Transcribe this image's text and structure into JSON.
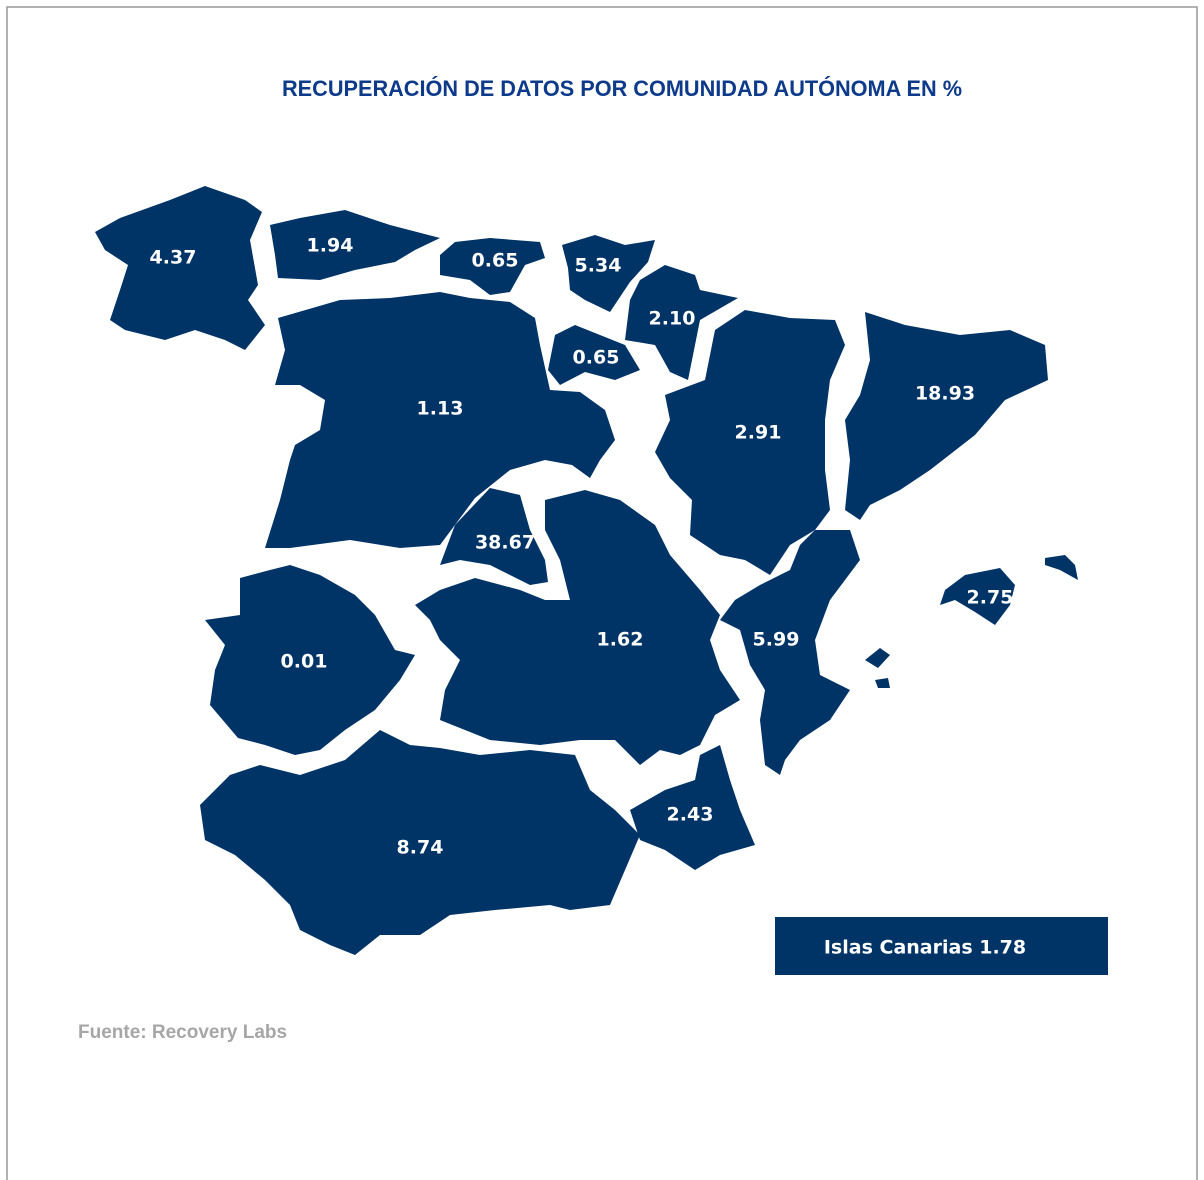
{
  "header": {
    "title": "RECUPERACIÓN DE DATOS POR COMUNIDAD AUTÓNOMA EN %"
  },
  "map": {
    "regions": [
      {
        "label": "4.37"
      },
      {
        "label": "1.94"
      },
      {
        "label": "0.65"
      },
      {
        "label": "5.34"
      },
      {
        "label": "2.10"
      },
      {
        "label": "0.65"
      },
      {
        "label": "1.13"
      },
      {
        "label": "2.91"
      },
      {
        "label": "18.93"
      },
      {
        "label": "38.67"
      },
      {
        "label": "1.62"
      },
      {
        "label": "5.99"
      },
      {
        "label": "0.01"
      },
      {
        "label": "8.74"
      },
      {
        "label": "2.43"
      },
      {
        "label": "2.75"
      }
    ],
    "inset": "Islas Canarias 1.78"
  },
  "footer": {
    "source": "Fuente: Recovery Labs"
  }
}
